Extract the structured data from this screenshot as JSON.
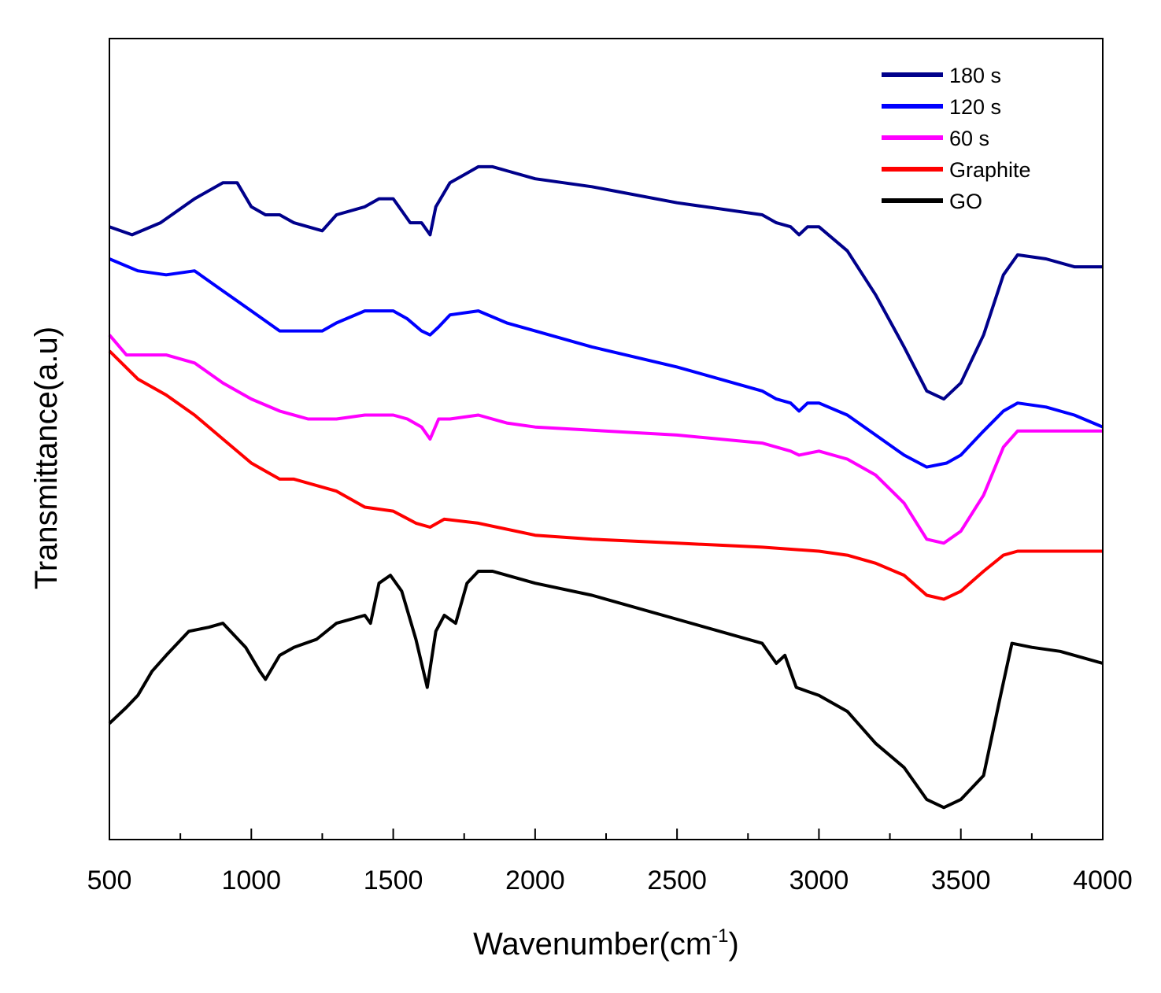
{
  "chart_data": {
    "type": "line",
    "title": "",
    "xlabel": "Wavenumber(cm",
    "xlabel_sup": "-1",
    "xlabel_close": ")",
    "ylabel": "Transmittance(a.u)",
    "xlim": [
      500,
      4000
    ],
    "ylim": [
      0,
      100
    ],
    "grid": false,
    "legend_position": "top-right",
    "x_ticks": [
      "500",
      "1000",
      "1500",
      "2000",
      "2500",
      "3000",
      "3500",
      "4000"
    ],
    "series": [
      {
        "name": "180 s",
        "color": "#00008b",
        "points": [
          [
            500,
            76.5
          ],
          [
            580,
            75.5
          ],
          [
            680,
            77
          ],
          [
            800,
            80
          ],
          [
            900,
            82
          ],
          [
            950,
            82
          ],
          [
            1000,
            79
          ],
          [
            1050,
            78
          ],
          [
            1100,
            78
          ],
          [
            1150,
            77
          ],
          [
            1250,
            76
          ],
          [
            1300,
            78
          ],
          [
            1400,
            79
          ],
          [
            1450,
            80
          ],
          [
            1500,
            80
          ],
          [
            1560,
            77
          ],
          [
            1600,
            77
          ],
          [
            1630,
            75.5
          ],
          [
            1650,
            79
          ],
          [
            1700,
            82
          ],
          [
            1750,
            83
          ],
          [
            1800,
            84
          ],
          [
            1850,
            84
          ],
          [
            1900,
            83.5
          ],
          [
            2000,
            82.5
          ],
          [
            2200,
            81.5
          ],
          [
            2500,
            79.5
          ],
          [
            2800,
            78
          ],
          [
            2850,
            77
          ],
          [
            2900,
            76.5
          ],
          [
            2930,
            75.5
          ],
          [
            2960,
            76.5
          ],
          [
            3000,
            76.5
          ],
          [
            3100,
            73.5
          ],
          [
            3200,
            68
          ],
          [
            3300,
            61.5
          ],
          [
            3380,
            56
          ],
          [
            3440,
            55
          ],
          [
            3500,
            57
          ],
          [
            3580,
            63
          ],
          [
            3650,
            70.5
          ],
          [
            3700,
            73
          ],
          [
            3800,
            72.5
          ],
          [
            3900,
            71.5
          ],
          [
            4000,
            71.5
          ]
        ]
      },
      {
        "name": "120 s",
        "color": "#0000ff",
        "points": [
          [
            500,
            72.5
          ],
          [
            600,
            71
          ],
          [
            700,
            70.5
          ],
          [
            800,
            71
          ],
          [
            900,
            68.5
          ],
          [
            1000,
            66
          ],
          [
            1100,
            63.5
          ],
          [
            1200,
            63.5
          ],
          [
            1250,
            63.5
          ],
          [
            1300,
            64.5
          ],
          [
            1400,
            66
          ],
          [
            1500,
            66
          ],
          [
            1550,
            65
          ],
          [
            1600,
            63.5
          ],
          [
            1630,
            63
          ],
          [
            1660,
            64
          ],
          [
            1700,
            65.5
          ],
          [
            1800,
            66
          ],
          [
            1900,
            64.5
          ],
          [
            2000,
            63.5
          ],
          [
            2200,
            61.5
          ],
          [
            2500,
            59
          ],
          [
            2800,
            56
          ],
          [
            2850,
            55
          ],
          [
            2900,
            54.5
          ],
          [
            2930,
            53.5
          ],
          [
            2960,
            54.5
          ],
          [
            3000,
            54.5
          ],
          [
            3100,
            53
          ],
          [
            3200,
            50.5
          ],
          [
            3300,
            48
          ],
          [
            3380,
            46.5
          ],
          [
            3450,
            47
          ],
          [
            3500,
            48
          ],
          [
            3580,
            51
          ],
          [
            3650,
            53.5
          ],
          [
            3700,
            54.5
          ],
          [
            3800,
            54
          ],
          [
            3900,
            53
          ],
          [
            4000,
            51.5
          ]
        ]
      },
      {
        "name": "60 s",
        "color": "#ff00ff",
        "points": [
          [
            500,
            63
          ],
          [
            560,
            60.5
          ],
          [
            620,
            60.5
          ],
          [
            700,
            60.5
          ],
          [
            800,
            59.5
          ],
          [
            900,
            57
          ],
          [
            1000,
            55
          ],
          [
            1100,
            53.5
          ],
          [
            1200,
            52.5
          ],
          [
            1300,
            52.5
          ],
          [
            1400,
            53
          ],
          [
            1450,
            53
          ],
          [
            1500,
            53
          ],
          [
            1550,
            52.5
          ],
          [
            1600,
            51.5
          ],
          [
            1630,
            50
          ],
          [
            1660,
            52.5
          ],
          [
            1700,
            52.5
          ],
          [
            1800,
            53
          ],
          [
            1900,
            52
          ],
          [
            2000,
            51.5
          ],
          [
            2500,
            50.5
          ],
          [
            2800,
            49.5
          ],
          [
            2900,
            48.5
          ],
          [
            2930,
            48
          ],
          [
            3000,
            48.5
          ],
          [
            3100,
            47.5
          ],
          [
            3200,
            45.5
          ],
          [
            3300,
            42
          ],
          [
            3380,
            37.5
          ],
          [
            3440,
            37
          ],
          [
            3500,
            38.5
          ],
          [
            3580,
            43
          ],
          [
            3650,
            49
          ],
          [
            3700,
            51
          ],
          [
            3800,
            51
          ],
          [
            3900,
            51
          ],
          [
            4000,
            51
          ]
        ]
      },
      {
        "name": "Graphite",
        "color": "#ff0000",
        "points": [
          [
            500,
            61
          ],
          [
            600,
            57.5
          ],
          [
            700,
            55.5
          ],
          [
            800,
            53
          ],
          [
            900,
            50
          ],
          [
            1000,
            47
          ],
          [
            1050,
            46
          ],
          [
            1100,
            45
          ],
          [
            1150,
            45
          ],
          [
            1300,
            43.5
          ],
          [
            1400,
            41.5
          ],
          [
            1500,
            41
          ],
          [
            1580,
            39.5
          ],
          [
            1630,
            39
          ],
          [
            1680,
            40
          ],
          [
            1800,
            39.5
          ],
          [
            2000,
            38
          ],
          [
            2200,
            37.5
          ],
          [
            2500,
            37
          ],
          [
            2800,
            36.5
          ],
          [
            3000,
            36
          ],
          [
            3100,
            35.5
          ],
          [
            3200,
            34.5
          ],
          [
            3300,
            33
          ],
          [
            3380,
            30.5
          ],
          [
            3440,
            30
          ],
          [
            3500,
            31
          ],
          [
            3580,
            33.5
          ],
          [
            3650,
            35.5
          ],
          [
            3700,
            36
          ],
          [
            4000,
            36
          ]
        ]
      },
      {
        "name": "GO",
        "color": "#000000",
        "points": [
          [
            500,
            14.5
          ],
          [
            560,
            16.5
          ],
          [
            600,
            18
          ],
          [
            650,
            21
          ],
          [
            700,
            23
          ],
          [
            780,
            26
          ],
          [
            850,
            26.5
          ],
          [
            900,
            27
          ],
          [
            980,
            24
          ],
          [
            1030,
            21
          ],
          [
            1050,
            20
          ],
          [
            1100,
            23
          ],
          [
            1150,
            24
          ],
          [
            1230,
            25
          ],
          [
            1300,
            27
          ],
          [
            1400,
            28
          ],
          [
            1420,
            27
          ],
          [
            1450,
            32
          ],
          [
            1490,
            33
          ],
          [
            1530,
            31
          ],
          [
            1580,
            25
          ],
          [
            1620,
            19
          ],
          [
            1650,
            26
          ],
          [
            1680,
            28
          ],
          [
            1720,
            27
          ],
          [
            1760,
            32
          ],
          [
            1800,
            33.5
          ],
          [
            1850,
            33.5
          ],
          [
            1900,
            33
          ],
          [
            2000,
            32
          ],
          [
            2200,
            30.5
          ],
          [
            2500,
            27.5
          ],
          [
            2800,
            24.5
          ],
          [
            2850,
            22
          ],
          [
            2880,
            23
          ],
          [
            2920,
            19
          ],
          [
            2960,
            18.5
          ],
          [
            3000,
            18
          ],
          [
            3100,
            16
          ],
          [
            3200,
            12
          ],
          [
            3300,
            9
          ],
          [
            3380,
            5
          ],
          [
            3440,
            4
          ],
          [
            3500,
            5
          ],
          [
            3580,
            8
          ],
          [
            3640,
            18
          ],
          [
            3680,
            24.5
          ],
          [
            3750,
            24
          ],
          [
            3850,
            23.5
          ],
          [
            4000,
            22
          ]
        ]
      }
    ]
  }
}
